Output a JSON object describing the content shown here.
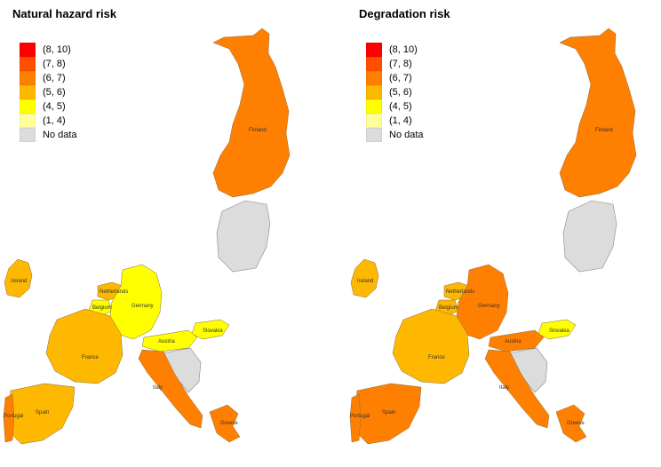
{
  "legend": {
    "items": [
      {
        "label": "(8, 10)",
        "color": "#ff0000"
      },
      {
        "label": "(7, 8)",
        "color": "#ff4e00"
      },
      {
        "label": "(6, 7)",
        "color": "#ff8000"
      },
      {
        "label": "(5, 6)",
        "color": "#ffb800"
      },
      {
        "label": "(4, 5)",
        "color": "#ffff00"
      },
      {
        "label": "(1, 4)",
        "color": "#ffff9c"
      },
      {
        "label": "No data",
        "color": "#dcdcdc"
      }
    ]
  },
  "maps": [
    {
      "title": "Natural hazard risk",
      "labels": {
        "finland": "Finland",
        "ireland": "Ireland",
        "netherlands": "Netherlands",
        "belgium": "Belgium",
        "germany": "Germany",
        "france": "France",
        "slovakia": "Slovakia",
        "austria": "Austria",
        "italy": "Italy",
        "spain": "Spain",
        "portugal": "Portugal",
        "greece": "Greece"
      },
      "colors": {
        "finland": "#ff8000",
        "ireland": "#ffb800",
        "netherlands": "#ffb800",
        "belgium": "#ffff00",
        "germany": "#ffff00",
        "france": "#ffb800",
        "slovakia": "#ffff00",
        "austria": "#ffff00",
        "italy": "#ff8000",
        "spain": "#ffb800",
        "portugal": "#ff8000",
        "greece": "#ff8000"
      }
    },
    {
      "title": "Degradation risk",
      "labels": {
        "finland": "Finland",
        "ireland": "Ireland",
        "netherlands": "Netherlands",
        "belgium": "Belgium",
        "germany": "Germany",
        "france": "France",
        "slovakia": "Slovakia",
        "austria": "Austria",
        "italy": "Italy",
        "spain": "Spain",
        "portugal": "Portugal",
        "greece": "Greece"
      },
      "colors": {
        "finland": "#ff8000",
        "ireland": "#ffb800",
        "netherlands": "#ffb800",
        "belgium": "#ffb800",
        "germany": "#ff8000",
        "france": "#ffb800",
        "slovakia": "#ffff00",
        "austria": "#ff8000",
        "italy": "#ff8000",
        "spain": "#ff8000",
        "portugal": "#ff8000",
        "greece": "#ff8000"
      }
    }
  ]
}
